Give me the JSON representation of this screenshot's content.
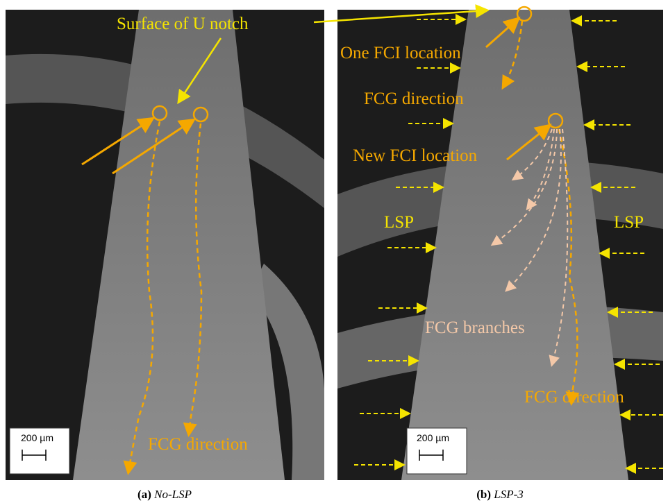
{
  "panels": [
    {
      "annotations": [
        "Surface of U notch",
        "FCG direction"
      ],
      "scale_bar": "200 µm",
      "caption": {
        "letter": "(a)",
        "name": "No-LSP"
      }
    },
    {
      "annotations": [
        "One  FCI location",
        "FCG direction",
        "New FCI location",
        "LSP",
        "LSP",
        "FCG branches",
        "FCG direction"
      ],
      "scale_bar": "200 µm",
      "caption": {
        "letter": "(b)",
        "name": "LSP-3"
      }
    }
  ]
}
